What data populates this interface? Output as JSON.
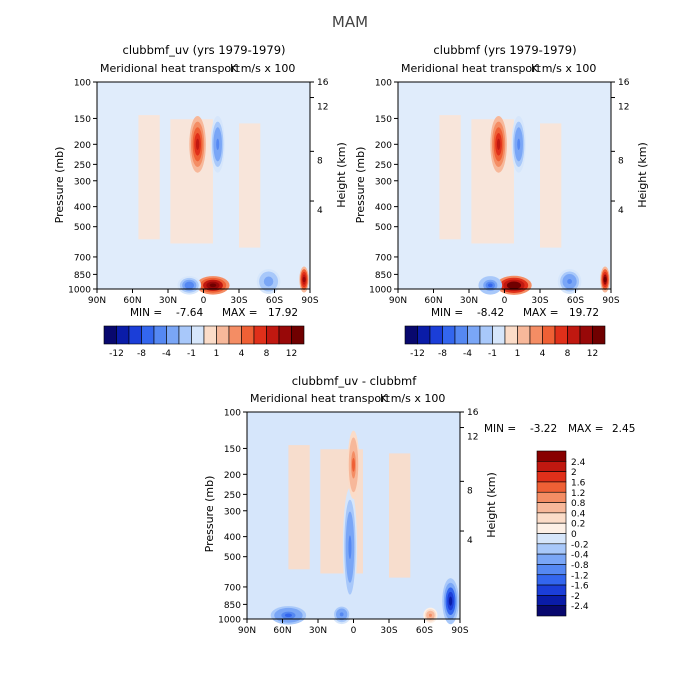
{
  "figure_title": "MAM",
  "chart_data": [
    {
      "type": "heatmap",
      "title": "clubbmf_uv (yrs 1979-1979)",
      "subtitle": "Meridional heat transport",
      "units_label": "K m/s x 100",
      "xlabel": "",
      "ylabel": "Pressure (mb)",
      "ylabel_right": "Height (km)",
      "x_ticks": [
        "90N",
        "60N",
        "30N",
        "0",
        "30S",
        "60S",
        "90S"
      ],
      "y_ticks": [
        "100",
        "150",
        "200",
        "250",
        "300",
        "400",
        "500",
        "700",
        "850",
        "1000"
      ],
      "height_ticks": [
        "16",
        "12",
        "8",
        "4"
      ],
      "min_label": "MIN =",
      "min_value": "-7.64",
      "max_label": "MAX =",
      "max_value": "17.92",
      "colorbar_ticks": [
        "-12",
        "-8",
        "-4",
        "-1",
        "1",
        "4",
        "8",
        "12"
      ],
      "colorbar_colors": [
        "#08086e",
        "#0a1ca8",
        "#1b3ed8",
        "#3366ee",
        "#5588f2",
        "#7aa6f6",
        "#a8c8fa",
        "#d6e6fb",
        "#fbdcc8",
        "#f7b89a",
        "#f48d64",
        "#ef6035",
        "#e0301a",
        "#c01810",
        "#980808",
        "#700000"
      ],
      "features": [
        {
          "name": "upper-red-lobe",
          "x": 5,
          "p": 200,
          "rx": 7,
          "rp": 55,
          "value": 10
        },
        {
          "name": "upper-blue-lobe",
          "x": -12,
          "p": 200,
          "rx": 6,
          "rp": 55,
          "value": -6
        },
        {
          "name": "surface-red-lobe",
          "x": -8,
          "p": 960,
          "rx": 14,
          "rp": 90,
          "value": 14
        },
        {
          "name": "surface-blue-lobe",
          "x": 12,
          "p": 960,
          "rx": 10,
          "rp": 90,
          "value": -7
        },
        {
          "name": "surface-blue-south",
          "x": -55,
          "p": 920,
          "rx": 10,
          "rp": 110,
          "value": -5
        },
        {
          "name": "polar-red-edge",
          "x": -85,
          "p": 900,
          "rx": 4,
          "rp": 100,
          "value": 12
        }
      ]
    },
    {
      "type": "heatmap",
      "title": "clubbmf (yrs 1979-1979)",
      "subtitle": "Meridional heat transport",
      "units_label": "K m/s x 100",
      "xlabel": "",
      "ylabel": "Pressure (mb)",
      "ylabel_right": "Height (km)",
      "x_ticks": [
        "90N",
        "60N",
        "30N",
        "0",
        "30S",
        "60S",
        "90S"
      ],
      "y_ticks": [
        "100",
        "150",
        "200",
        "250",
        "300",
        "400",
        "500",
        "700",
        "850",
        "1000"
      ],
      "height_ticks": [
        "16",
        "12",
        "8",
        "4"
      ],
      "min_label": "MIN =",
      "min_value": "-8.42",
      "max_label": "MAX =",
      "max_value": "19.72",
      "colorbar_ticks": [
        "-12",
        "-8",
        "-4",
        "-1",
        "1",
        "4",
        "8",
        "12"
      ],
      "colorbar_colors": [
        "#08086e",
        "#0a1ca8",
        "#1b3ed8",
        "#3366ee",
        "#5588f2",
        "#7aa6f6",
        "#a8c8fa",
        "#d6e6fb",
        "#fbdcc8",
        "#f7b89a",
        "#f48d64",
        "#ef6035",
        "#e0301a",
        "#c01810",
        "#980808",
        "#700000"
      ],
      "features": [
        {
          "name": "upper-red-lobe",
          "x": 5,
          "p": 200,
          "rx": 7,
          "rp": 55,
          "value": 10
        },
        {
          "name": "upper-blue-lobe",
          "x": -12,
          "p": 200,
          "rx": 6,
          "rp": 55,
          "value": -6
        },
        {
          "name": "surface-red-lobe",
          "x": -8,
          "p": 960,
          "rx": 15,
          "rp": 95,
          "value": 16
        },
        {
          "name": "surface-blue-lobe",
          "x": 12,
          "p": 960,
          "rx": 10,
          "rp": 90,
          "value": -8
        },
        {
          "name": "surface-blue-south",
          "x": -55,
          "p": 920,
          "rx": 10,
          "rp": 110,
          "value": -6
        },
        {
          "name": "polar-red-edge",
          "x": -85,
          "p": 900,
          "rx": 4,
          "rp": 100,
          "value": 13
        }
      ]
    },
    {
      "type": "heatmap",
      "title": "clubbmf_uv - clubbmf",
      "subtitle": "Meridional heat transport",
      "units_label": "K m/s x 100",
      "xlabel": "",
      "ylabel": "Pressure (mb)",
      "ylabel_right": "Height (km)",
      "x_ticks": [
        "90N",
        "60N",
        "30N",
        "0",
        "30S",
        "60S",
        "90S"
      ],
      "y_ticks": [
        "100",
        "150",
        "200",
        "250",
        "300",
        "400",
        "500",
        "700",
        "850",
        "1000"
      ],
      "height_ticks": [
        "16",
        "12",
        "8",
        "4"
      ],
      "min_label": "MIN =",
      "min_value": "-3.22",
      "max_label": "MAX =",
      "max_value": "2.45",
      "colorbar_levels": [
        "2.4",
        "2",
        "1.6",
        "1.2",
        "0.8",
        "0.4",
        "0.2",
        "0",
        "-0.2",
        "-0.4",
        "-0.8",
        "-1.2",
        "-1.6",
        "-2",
        "-2.4"
      ],
      "colorbar_colors": [
        "#880000",
        "#c01810",
        "#e0301a",
        "#ef6035",
        "#f48d64",
        "#f7b89a",
        "#fbdcc8",
        "#fdf0e6",
        "#d6e6fb",
        "#a8c8fa",
        "#7aa6f6",
        "#5588f2",
        "#3366ee",
        "#1b3ed8",
        "#0a1ca8",
        "#08086e"
      ],
      "features": [
        {
          "name": "equatorial-blue-column",
          "x": 3,
          "p": 450,
          "rx": 6,
          "rp": 250,
          "value": -1.2
        },
        {
          "name": "upper-red-lobe",
          "x": 0,
          "p": 180,
          "rx": 5,
          "rp": 60,
          "value": 1.6
        },
        {
          "name": "surface-blue-nh",
          "x": 55,
          "p": 960,
          "rx": 15,
          "rp": 90,
          "value": -1.6
        },
        {
          "name": "surface-blue-eq",
          "x": 10,
          "p": 950,
          "rx": 8,
          "rp": 90,
          "value": -1.2
        },
        {
          "name": "polar-blue-south",
          "x": -82,
          "p": 820,
          "rx": 7,
          "rp": 180,
          "value": -2.4
        },
        {
          "name": "surface-red-60s",
          "x": -65,
          "p": 960,
          "rx": 6,
          "rp": 60,
          "value": 1.2
        }
      ]
    }
  ]
}
